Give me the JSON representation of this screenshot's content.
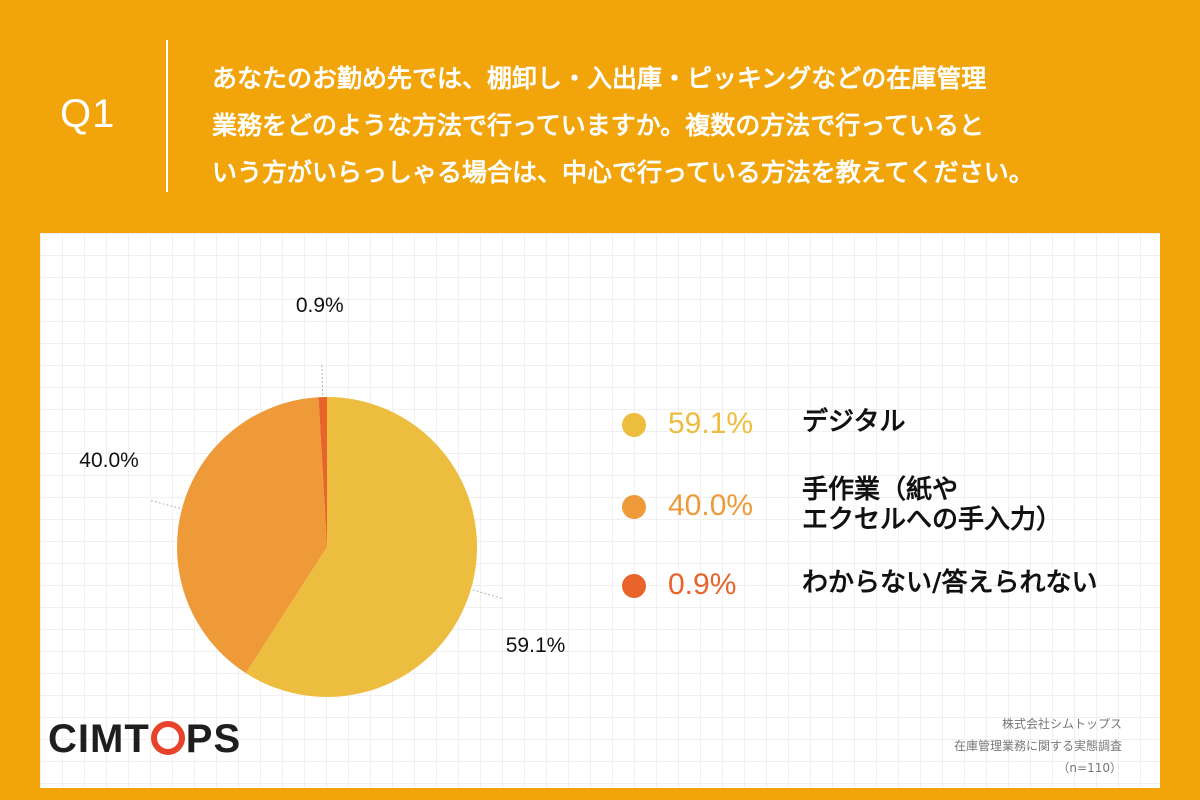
{
  "question": {
    "label": "Q1",
    "lines": [
      "あなたのお勤め先では、棚卸し・入出庫・ピッキングなどの在庫管理",
      "業務をどのような方法で行っていますか。複数の方法で行っていると",
      "いう方がいらっしゃる場合は、中心で行っている方法を教えてください。"
    ]
  },
  "chart_data": {
    "type": "pie",
    "slices": [
      {
        "label": "デジタル",
        "value": 59.1,
        "value_label": "59.1%",
        "color": "#EDBD3F"
      },
      {
        "label": "手作業（紙やエクセルへの手入力）",
        "value": 40.0,
        "value_label": "40.0%",
        "color": "#EF9A38"
      },
      {
        "label": "わからない/答えられない",
        "value": 0.9,
        "value_label": "0.9%",
        "color": "#E8642A"
      }
    ]
  },
  "legend": [
    {
      "pct": "59.1%",
      "label_lines": [
        "デジタル"
      ],
      "color": "#EDBD3F"
    },
    {
      "pct": "40.0%",
      "label_lines": [
        "手作業（紙や",
        "エクセルへの手入力）"
      ],
      "color": "#EF9A38"
    },
    {
      "pct": "0.9%",
      "label_lines": [
        "わからない/答えられない"
      ],
      "color": "#E8642A"
    }
  ],
  "logo": {
    "before": "CIMT",
    "after": "PS"
  },
  "source": {
    "company": "株式会社シムトップス",
    "survey": "在庫管理業務に関する実態調査",
    "sample": "（n=110）"
  }
}
